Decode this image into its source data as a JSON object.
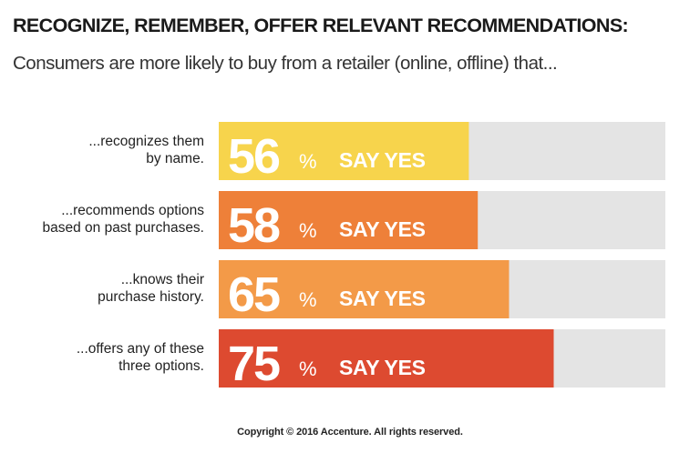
{
  "title": "RECOGNIZE, REMEMBER, OFFER RELEVANT RECOMMENDATIONS:",
  "subtitle": "Consumers are more likely to buy from a retailer (online, offline) that...",
  "copyright": "Copyright © 2016 Accenture. All rights reserved.",
  "chart_data": {
    "type": "bar",
    "orientation": "horizontal",
    "xlim": [
      0,
      100
    ],
    "percent_suffix": "%",
    "value_suffix_label": "SAY YES",
    "track_color": "#e4e4e4",
    "categories": [
      {
        "lines": [
          "...recognizes them",
          "by name."
        ],
        "value": 56,
        "color": "#f7d44c"
      },
      {
        "lines": [
          "...recommends options",
          "based on past purchases."
        ],
        "value": 58,
        "color": "#ee8039"
      },
      {
        "lines": [
          "...knows their",
          "purchase history."
        ],
        "value": 65,
        "color": "#f39a48"
      },
      {
        "lines": [
          "...offers any of these",
          "three options."
        ],
        "value": 75,
        "color": "#dd4a30"
      }
    ]
  }
}
